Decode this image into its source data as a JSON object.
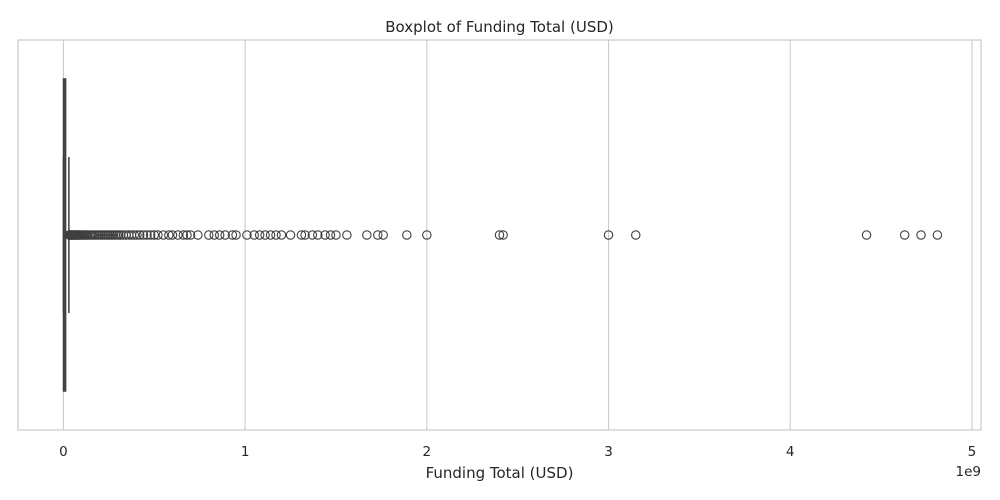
{
  "chart_data": {
    "type": "boxplot",
    "orientation": "horizontal",
    "title": "Boxplot of Funding Total (USD)",
    "xlabel": "Funding Total (USD)",
    "ylabel": "",
    "x_offset_label": "1e9",
    "x_ticks": [
      0,
      1,
      2,
      3,
      4,
      5
    ],
    "xlim": [
      -0.25,
      5.05
    ],
    "grid": "vertical gridlines",
    "box": {
      "whisker_low": 0.0,
      "q1": 0.0005,
      "median": 0.003,
      "q3": 0.012,
      "whisker_high": 0.03
    },
    "outliers": [
      0.032,
      0.035,
      0.038,
      0.041,
      0.044,
      0.047,
      0.05,
      0.054,
      0.058,
      0.062,
      0.066,
      0.07,
      0.075,
      0.08,
      0.085,
      0.09,
      0.095,
      0.1,
      0.106,
      0.112,
      0.118,
      0.125,
      0.132,
      0.14,
      0.148,
      0.156,
      0.165,
      0.175,
      0.185,
      0.195,
      0.205,
      0.215,
      0.225,
      0.235,
      0.245,
      0.255,
      0.265,
      0.275,
      0.285,
      0.295,
      0.305,
      0.315,
      0.33,
      0.345,
      0.36,
      0.375,
      0.39,
      0.405,
      0.42,
      0.44,
      0.46,
      0.48,
      0.5,
      0.52,
      0.55,
      0.58,
      0.6,
      0.63,
      0.66,
      0.68,
      0.7,
      0.74,
      0.8,
      0.83,
      0.86,
      0.89,
      0.93,
      0.95,
      1.01,
      1.05,
      1.08,
      1.11,
      1.14,
      1.17,
      1.2,
      1.25,
      1.31,
      1.33,
      1.37,
      1.4,
      1.44,
      1.47,
      1.5,
      1.56,
      1.67,
      1.73,
      1.76,
      1.89,
      2.0,
      2.4,
      2.42,
      3.0,
      3.15,
      4.42,
      4.63,
      4.72,
      4.81
    ],
    "colors": {
      "box_edge": "#3f3f3f",
      "grid": "#cccccc",
      "frame": "#cccccc",
      "text": "#262626"
    }
  }
}
